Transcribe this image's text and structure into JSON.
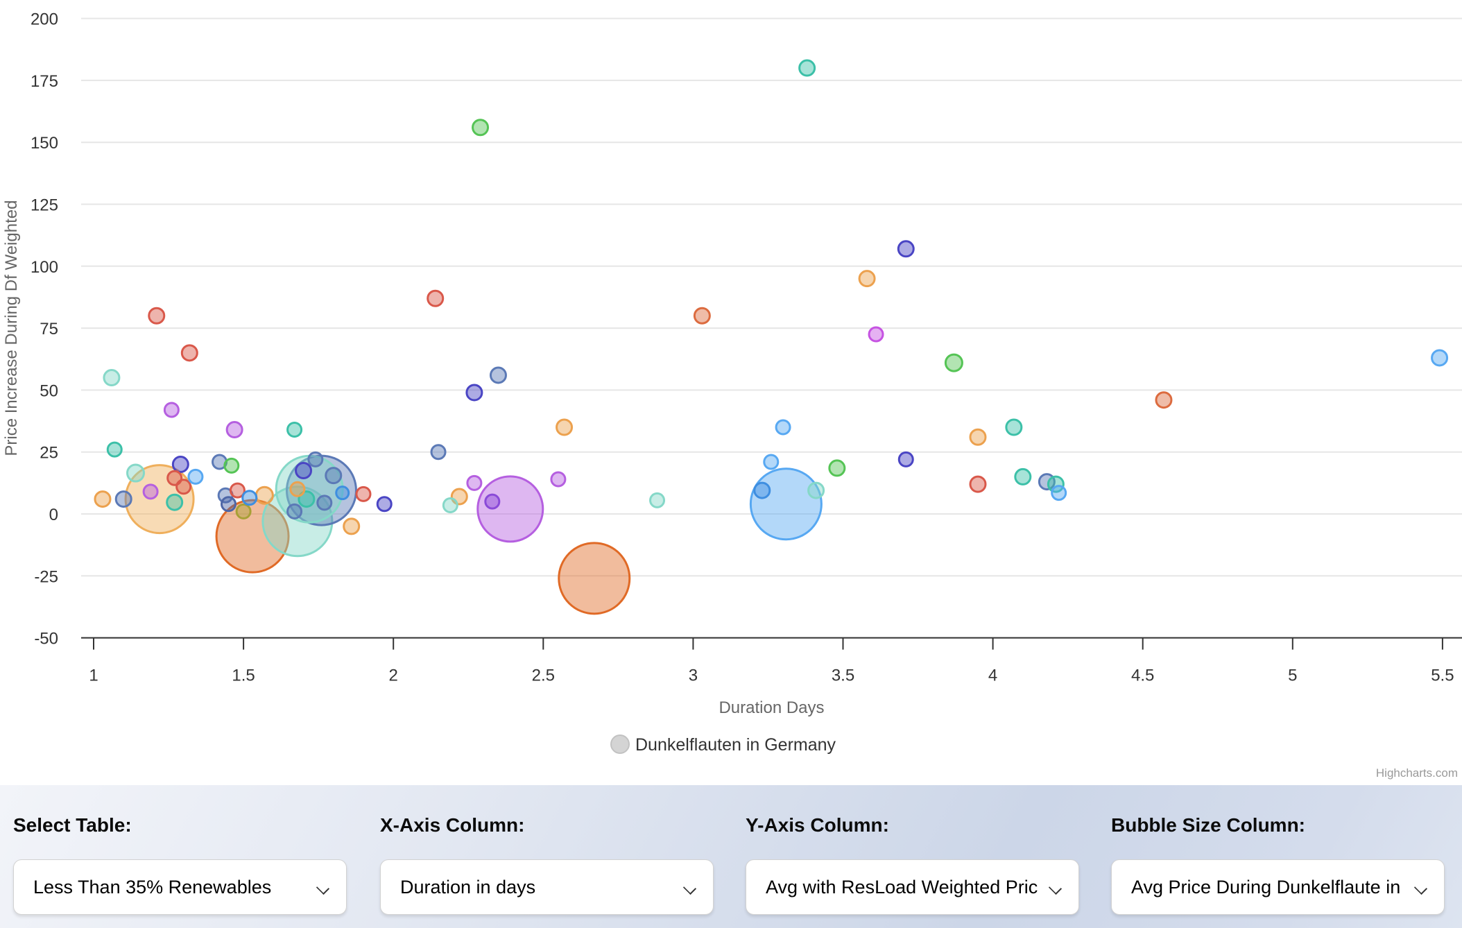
{
  "chart": {
    "y_axis_title": "Price Increase During Df Weighted",
    "x_axis_title": "Duration Days",
    "legend_label": "Dunkelflauten in Germany",
    "credits": "Highcharts.com",
    "grid_color": "#e6e6e6",
    "legend_symbol_color": "#d4d4d4"
  },
  "chart_data": {
    "type": "bubble",
    "title": "",
    "xlabel": "Duration Days",
    "ylabel": "Price Increase During Df Weighted",
    "series_name": "Dunkelflauten in Germany",
    "xlim": [
      1,
      5.5
    ],
    "ylim": [
      -50,
      200
    ],
    "x_ticks": [
      1,
      1.5,
      2,
      2.5,
      3,
      3.5,
      4,
      4.5,
      5,
      5.5
    ],
    "y_ticks": [
      -50,
      -25,
      0,
      25,
      50,
      75,
      100,
      125,
      150,
      175,
      200
    ],
    "grid": true,
    "legend_position": "bottom-center",
    "palette": {
      "red": "#D9584A",
      "redorange": "#DC6B3F",
      "darkorange": "#E06A26",
      "orange": "#ECA14E",
      "lightorange": "#EFAF5C",
      "olive": "#A8A036",
      "green": "#55C455",
      "teal": "#3CC0A8",
      "paleteal": "#85D8C8",
      "lightblue": "#57A8F2",
      "blue": "#3E8EE0",
      "bluegray": "#5B79B6",
      "navy": "#4E66A6",
      "indigo": "#4A45C4",
      "violet": "#B55FE0",
      "magenta": "#C653E2",
      "purple": "#8A4AD8"
    },
    "points": [
      [
        1.03,
        6,
        11,
        "orange"
      ],
      [
        1.06,
        55,
        11,
        "paleteal"
      ],
      [
        1.07,
        26,
        10,
        "teal"
      ],
      [
        1.1,
        6,
        11,
        "bluegray"
      ],
      [
        1.14,
        16.5,
        12,
        "paleteal"
      ],
      [
        1.19,
        9,
        10,
        "violet"
      ],
      [
        1.21,
        80,
        11,
        "red"
      ],
      [
        1.22,
        6,
        49,
        "lightorange"
      ],
      [
        1.26,
        42,
        10,
        "violet"
      ],
      [
        1.27,
        14.5,
        10,
        "red"
      ],
      [
        1.27,
        4.7,
        11,
        "teal"
      ],
      [
        1.29,
        20,
        11,
        "indigo"
      ],
      [
        1.3,
        11,
        10,
        "red"
      ],
      [
        1.32,
        65,
        11,
        "red"
      ],
      [
        1.34,
        15,
        10,
        "lightblue"
      ],
      [
        1.42,
        21,
        10,
        "bluegray"
      ],
      [
        1.44,
        7.5,
        10,
        "bluegray"
      ],
      [
        1.45,
        4,
        10,
        "navy"
      ],
      [
        1.46,
        19.5,
        10,
        "green"
      ],
      [
        1.47,
        34,
        11,
        "violet"
      ],
      [
        1.48,
        9.5,
        10,
        "red"
      ],
      [
        1.5,
        1,
        10,
        "olive"
      ],
      [
        1.52,
        6.5,
        10,
        "blue"
      ],
      [
        1.53,
        -9,
        52,
        "darkorange"
      ],
      [
        1.57,
        7.5,
        12,
        "orange"
      ],
      [
        1.67,
        34,
        10,
        "teal"
      ],
      [
        1.67,
        1,
        10,
        "bluegray"
      ],
      [
        1.68,
        10,
        10,
        "orange"
      ],
      [
        1.68,
        -3,
        50,
        "paleteal"
      ],
      [
        1.7,
        17.5,
        11,
        "indigo"
      ],
      [
        1.71,
        6,
        11,
        "teal"
      ],
      [
        1.72,
        10,
        48,
        "paleteal"
      ],
      [
        1.74,
        22,
        10,
        "bluegray"
      ],
      [
        1.76,
        9.5,
        50,
        "bluegray"
      ],
      [
        1.77,
        4.5,
        10,
        "bluegray"
      ],
      [
        1.8,
        15.5,
        11,
        "bluegray"
      ],
      [
        1.83,
        8.5,
        9,
        "blue"
      ],
      [
        1.86,
        -5,
        11,
        "orange"
      ],
      [
        1.9,
        8,
        10,
        "red"
      ],
      [
        1.97,
        4,
        10,
        "indigo"
      ],
      [
        2.14,
        87,
        11,
        "red"
      ],
      [
        2.15,
        25,
        10,
        "bluegray"
      ],
      [
        2.19,
        3.5,
        10,
        "paleteal"
      ],
      [
        2.22,
        7,
        11,
        "orange"
      ],
      [
        2.27,
        49,
        11,
        "indigo"
      ],
      [
        2.27,
        12.5,
        10,
        "violet"
      ],
      [
        2.29,
        156,
        11,
        "green"
      ],
      [
        2.33,
        5,
        10,
        "purple"
      ],
      [
        2.35,
        56,
        11,
        "bluegray"
      ],
      [
        2.39,
        2,
        47,
        "violet"
      ],
      [
        2.55,
        14,
        10,
        "violet"
      ],
      [
        2.57,
        35,
        11,
        "orange"
      ],
      [
        2.67,
        -26,
        51,
        "darkorange"
      ],
      [
        2.88,
        5.5,
        10,
        "paleteal"
      ],
      [
        3.03,
        80,
        11,
        "redorange"
      ],
      [
        3.23,
        9.5,
        11,
        "blue"
      ],
      [
        3.26,
        21,
        10,
        "lightblue"
      ],
      [
        3.3,
        35,
        10,
        "lightblue"
      ],
      [
        3.31,
        4,
        51,
        "lightblue"
      ],
      [
        3.38,
        180,
        11,
        "teal"
      ],
      [
        3.41,
        9.5,
        11,
        "paleteal"
      ],
      [
        3.48,
        18.5,
        11,
        "green"
      ],
      [
        3.58,
        95,
        11,
        "orange"
      ],
      [
        3.61,
        72.5,
        10,
        "magenta"
      ],
      [
        3.71,
        107,
        11,
        "indigo"
      ],
      [
        3.71,
        22,
        10,
        "indigo"
      ],
      [
        3.87,
        61,
        12,
        "green"
      ],
      [
        3.95,
        31,
        11,
        "orange"
      ],
      [
        3.95,
        12,
        11,
        "red"
      ],
      [
        4.07,
        35,
        11,
        "teal"
      ],
      [
        4.1,
        15,
        11,
        "teal"
      ],
      [
        4.18,
        13,
        11,
        "bluegray"
      ],
      [
        4.21,
        12,
        11,
        "teal"
      ],
      [
        4.22,
        8.5,
        10,
        "lightblue"
      ],
      [
        4.57,
        46,
        11,
        "redorange"
      ],
      [
        5.49,
        63,
        11,
        "lightblue"
      ]
    ]
  },
  "controls": {
    "groups": [
      {
        "id": "select-table",
        "label": "Select Table:",
        "value": "Less Than 35% Renewables"
      },
      {
        "id": "x-axis-column",
        "label": "X-Axis Column:",
        "value": "Duration in days"
      },
      {
        "id": "y-axis-column",
        "label": "Y-Axis Column:",
        "value": "Avg with ResLoad Weighted Pric"
      },
      {
        "id": "bubble-size-column",
        "label": "Bubble Size Column:",
        "value": "Avg Price During Dunkelflaute in"
      }
    ]
  }
}
